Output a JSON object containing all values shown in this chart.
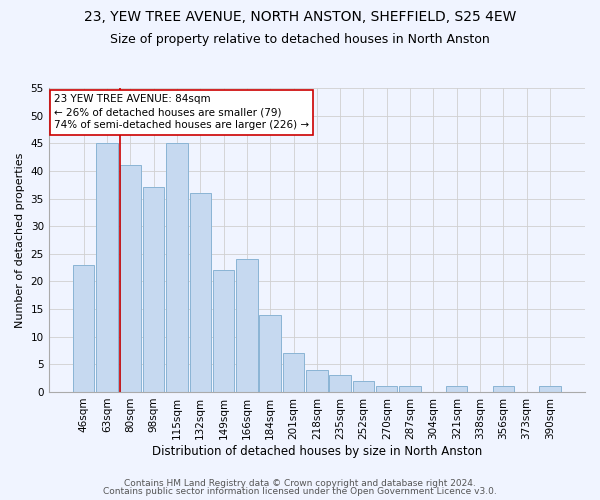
{
  "title": "23, YEW TREE AVENUE, NORTH ANSTON, SHEFFIELD, S25 4EW",
  "subtitle": "Size of property relative to detached houses in North Anston",
  "xlabel": "Distribution of detached houses by size in North Anston",
  "ylabel": "Number of detached properties",
  "footnote1": "Contains HM Land Registry data © Crown copyright and database right 2024.",
  "footnote2": "Contains public sector information licensed under the Open Government Licence v3.0.",
  "categories": [
    "46sqm",
    "63sqm",
    "80sqm",
    "98sqm",
    "115sqm",
    "132sqm",
    "149sqm",
    "166sqm",
    "184sqm",
    "201sqm",
    "218sqm",
    "235sqm",
    "252sqm",
    "270sqm",
    "287sqm",
    "304sqm",
    "321sqm",
    "338sqm",
    "356sqm",
    "373sqm",
    "390sqm"
  ],
  "values": [
    23,
    45,
    41,
    37,
    45,
    36,
    22,
    24,
    14,
    7,
    4,
    3,
    2,
    1,
    1,
    0,
    1,
    0,
    1,
    0,
    1
  ],
  "bar_color": "#c6d9f0",
  "bar_edge_color": "#8ab4d4",
  "grid_color": "#d0d0d0",
  "vline_color": "#cc0000",
  "vline_x_index": 1.575,
  "annotation_text": "23 YEW TREE AVENUE: 84sqm\n← 26% of detached houses are smaller (79)\n74% of semi-detached houses are larger (226) →",
  "annotation_box_color": "#ffffff",
  "annotation_box_edge": "#cc0000",
  "ylim": [
    0,
    55
  ],
  "yticks": [
    0,
    5,
    10,
    15,
    20,
    25,
    30,
    35,
    40,
    45,
    50,
    55
  ],
  "title_fontsize": 10,
  "subtitle_fontsize": 9,
  "xlabel_fontsize": 8.5,
  "ylabel_fontsize": 8,
  "tick_fontsize": 7.5,
  "annot_fontsize": 7.5,
  "footnote_fontsize": 6.5,
  "background_color": "#f0f4ff"
}
